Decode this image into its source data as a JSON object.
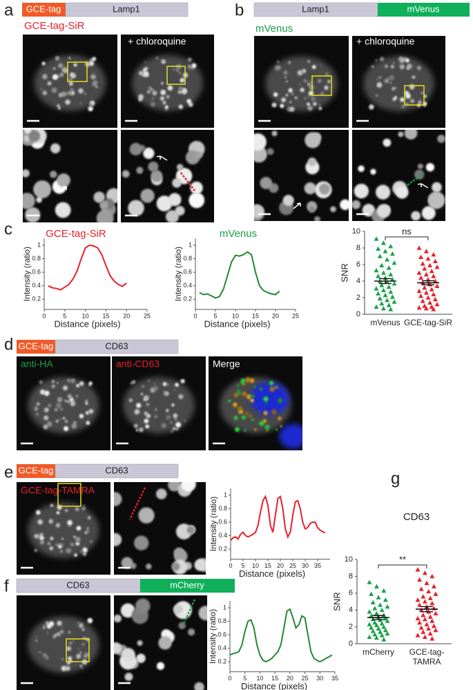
{
  "figure": {
    "panel_labels": [
      "a",
      "b",
      "c",
      "d",
      "e",
      "f",
      "g"
    ],
    "a": {
      "bar": [
        "GCE-tag",
        "Lamp1"
      ],
      "label": "GCE-tag-SiR",
      "treatment": "+ chloroquine"
    },
    "b": {
      "bar": [
        "Lamp1",
        "mVenus"
      ],
      "label": "mVenus",
      "treatment": "+ chloroquine"
    },
    "d": {
      "bar": [
        "GCE-tag",
        "CD63"
      ],
      "labels": [
        "anti-HA",
        "anti-CD63",
        "Merge"
      ]
    },
    "e": {
      "bar": [
        "GCE-tag",
        "CD63"
      ],
      "label": "GCE-tag-TAMRA"
    },
    "f": {
      "bar": [
        "CD63",
        "mCherry"
      ]
    }
  },
  "chart_data": [
    {
      "type": "line",
      "title": "GCE-tag-SiR",
      "title_color": "#e8202a",
      "x_label": "Distance (pixels)",
      "y_label": "Intensity (ratio)",
      "xlim": [
        0,
        25
      ],
      "xticks": [
        0,
        5,
        10,
        15,
        20,
        25
      ],
      "ylim": [
        0.05,
        1.1
      ],
      "yticks": [
        0.2,
        0.4,
        0.6,
        0.8,
        1
      ],
      "x": [
        1,
        2,
        3,
        4,
        5,
        6,
        7,
        8,
        9,
        10,
        11,
        12,
        13,
        14,
        15,
        16,
        17,
        18,
        19,
        20
      ],
      "series": [
        {
          "color": "#e8202a",
          "values": [
            0.4,
            0.37,
            0.36,
            0.34,
            0.38,
            0.42,
            0.5,
            0.62,
            0.8,
            0.96,
            1.0,
            0.99,
            0.96,
            0.86,
            0.7,
            0.55,
            0.47,
            0.42,
            0.39,
            0.44
          ]
        }
      ]
    },
    {
      "type": "line",
      "title": "mVenus",
      "title_color": "#1a9e47",
      "x_label": "Distance (pixels)",
      "y_label": "Intensity (ratio)",
      "xlim": [
        0,
        25
      ],
      "xticks": [
        0,
        5,
        10,
        15,
        20,
        25
      ],
      "ylim": [
        0.05,
        1.1
      ],
      "yticks": [
        0.2,
        0.4,
        0.6,
        0.8,
        1
      ],
      "x": [
        1,
        2,
        3,
        4,
        5,
        6,
        7,
        8,
        9,
        10,
        11,
        12,
        13,
        14,
        15,
        16,
        17,
        18,
        19,
        20,
        21
      ],
      "series": [
        {
          "color": "#1f8a2e",
          "values": [
            0.3,
            0.27,
            0.28,
            0.25,
            0.22,
            0.24,
            0.35,
            0.55,
            0.75,
            0.85,
            0.84,
            0.86,
            0.9,
            0.86,
            0.6,
            0.4,
            0.33,
            0.3,
            0.28,
            0.27,
            0.32
          ]
        }
      ]
    },
    {
      "type": "scatter",
      "y_label": "SNR",
      "annotation": "ns",
      "ylim": [
        0,
        10
      ],
      "yticks": [
        0,
        2,
        4,
        6,
        8,
        10
      ],
      "categories": [
        "mVenus",
        "GCE-tag-SiR"
      ],
      "series": [
        {
          "color": "#1aa14a",
          "mean": 4.0,
          "sem": 0.3,
          "values": [
            9.1,
            8.6,
            8.2,
            7.9,
            7.6,
            7.3,
            7.0,
            6.6,
            6.2,
            5.9,
            5.6,
            5.3,
            5.0,
            4.8,
            4.6,
            4.4,
            4.2,
            4.0,
            3.9,
            3.7,
            3.5,
            3.3,
            3.1,
            2.9,
            2.7,
            2.5,
            2.3,
            2.1,
            1.9,
            1.7,
            1.5,
            1.3,
            1.1,
            0.9,
            0.7,
            0.6
          ]
        },
        {
          "color": "#e8202a",
          "mean": 3.8,
          "sem": 0.25,
          "values": [
            8.0,
            7.6,
            7.2,
            6.9,
            6.7,
            6.4,
            6.1,
            5.9,
            5.7,
            5.5,
            5.2,
            5.0,
            4.8,
            4.6,
            4.4,
            4.2,
            4.0,
            3.8,
            3.6,
            3.4,
            3.2,
            3.0,
            2.8,
            2.6,
            2.4,
            2.2,
            2.0,
            1.8,
            1.6,
            1.4,
            1.2,
            1.0,
            0.9,
            0.8,
            0.7,
            0.6
          ]
        }
      ]
    },
    {
      "type": "line",
      "x_label": "Distance (pixels)",
      "y_label": "Intensity (ratio)",
      "xlim": [
        0,
        40
      ],
      "xticks": [
        0,
        5,
        10,
        15,
        20,
        25,
        30,
        35
      ],
      "ylim": [
        0.05,
        1.1
      ],
      "yticks": [
        0.2,
        0.4,
        0.6,
        0.8,
        1
      ],
      "x": [
        0,
        1,
        2,
        3,
        4,
        5,
        6,
        7,
        8,
        9,
        10,
        11,
        12,
        13,
        14,
        15,
        16,
        17,
        18,
        19,
        20,
        21,
        22,
        23,
        24,
        25,
        26,
        27,
        28,
        29,
        30,
        31,
        32,
        33,
        34,
        35,
        36,
        37,
        38
      ],
      "series": [
        {
          "color": "#e8202a",
          "values": [
            0.33,
            0.37,
            0.38,
            0.35,
            0.42,
            0.45,
            0.4,
            0.38,
            0.4,
            0.42,
            0.45,
            0.55,
            0.75,
            0.92,
            0.98,
            0.85,
            0.55,
            0.45,
            0.7,
            0.95,
            0.98,
            0.8,
            0.5,
            0.38,
            0.45,
            0.7,
            0.9,
            0.92,
            0.8,
            0.6,
            0.5,
            0.52,
            0.58,
            0.6,
            0.6,
            0.52,
            0.48,
            0.46,
            0.44
          ]
        }
      ]
    },
    {
      "type": "line",
      "x_label": "Distance (pixels)",
      "y_label": "Intensity (ratio)",
      "xlim": [
        0,
        35
      ],
      "xticks": [
        0,
        5,
        10,
        15,
        20,
        25,
        30,
        35
      ],
      "ylim": [
        0.05,
        1.1
      ],
      "yticks": [
        0.2,
        0.4,
        0.6,
        0.8,
        1
      ],
      "x": [
        0,
        1,
        2,
        3,
        4,
        5,
        6,
        7,
        8,
        9,
        10,
        11,
        12,
        13,
        14,
        15,
        16,
        17,
        18,
        19,
        20,
        21,
        22,
        23,
        24,
        25,
        26,
        27,
        28,
        29,
        30,
        31,
        32,
        33,
        34
      ],
      "series": [
        {
          "color": "#1f8a2e",
          "values": [
            0.3,
            0.32,
            0.33,
            0.35,
            0.45,
            0.65,
            0.8,
            0.82,
            0.7,
            0.45,
            0.3,
            0.22,
            0.2,
            0.22,
            0.25,
            0.3,
            0.35,
            0.45,
            0.7,
            0.95,
            0.98,
            0.85,
            0.7,
            0.75,
            0.88,
            0.85,
            0.6,
            0.35,
            0.25,
            0.22,
            0.2,
            0.22,
            0.25,
            0.27,
            0.3
          ]
        }
      ]
    },
    {
      "type": "scatter",
      "title": "CD63",
      "y_label": "SNR",
      "annotation": "**",
      "ylim": [
        0,
        10
      ],
      "yticks": [
        0,
        2,
        4,
        6,
        8,
        10
      ],
      "categories": [
        "mCherry",
        "GCE-tag-\nTAMRA"
      ],
      "series": [
        {
          "color": "#1aa14a",
          "mean": 3.1,
          "sem": 0.25,
          "values": [
            7.3,
            6.8,
            6.3,
            5.9,
            5.5,
            5.2,
            4.9,
            4.6,
            4.4,
            4.2,
            4.0,
            3.8,
            3.6,
            3.4,
            3.3,
            3.2,
            3.0,
            2.9,
            2.8,
            2.7,
            2.5,
            2.4,
            2.3,
            2.2,
            2.0,
            1.9,
            1.8,
            1.6,
            1.5,
            1.4,
            1.2,
            1.1,
            1.0,
            0.8,
            0.7,
            0.5
          ]
        },
        {
          "color": "#e8202a",
          "mean": 4.1,
          "sem": 0.3,
          "values": [
            8.8,
            8.4,
            8.0,
            7.6,
            7.2,
            6.8,
            6.5,
            6.2,
            5.9,
            5.6,
            5.4,
            5.2,
            5.0,
            4.8,
            4.6,
            4.4,
            4.2,
            4.0,
            3.8,
            3.6,
            3.4,
            3.2,
            3.0,
            2.9,
            2.7,
            2.5,
            2.3,
            2.1,
            1.9,
            1.8,
            1.6,
            1.4,
            1.2,
            1.0,
            0.8,
            0.6
          ]
        }
      ]
    }
  ]
}
